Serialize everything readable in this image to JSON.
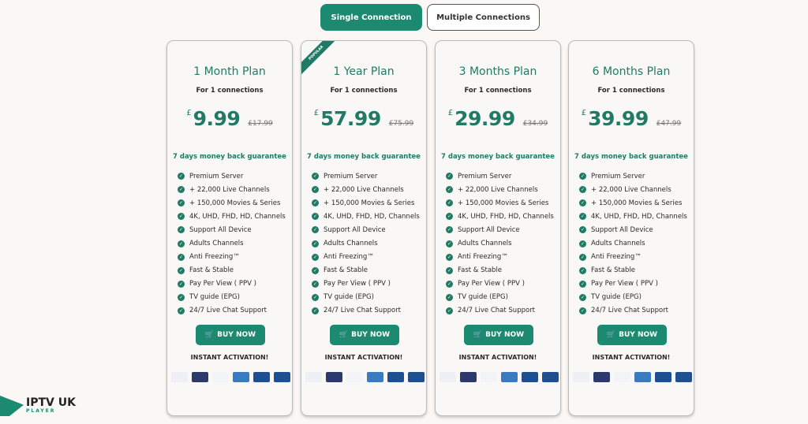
{
  "tabs": [
    {
      "label": "Single Connection",
      "active": true
    },
    {
      "label": "Multiple Connections",
      "active": false
    }
  ],
  "colors": {
    "accent": "#1b8a70",
    "text_green": "#1f7a66"
  },
  "plans": [
    {
      "title": "1 Month Plan",
      "connections": "For 1 connections",
      "currency": "£",
      "price": "9.99",
      "old_price": "£17.99",
      "badge": ""
    },
    {
      "title": "1 Year Plan",
      "connections": "For 1 connections",
      "currency": "£",
      "price": "57.99",
      "old_price": "£75.99",
      "badge": "POPULAR"
    },
    {
      "title": "3 Months Plan",
      "connections": "For 1 connections",
      "currency": "£",
      "price": "29.99",
      "old_price": "£34.99",
      "badge": ""
    },
    {
      "title": "6 Months Plan",
      "connections": "For 1 connections",
      "currency": "£",
      "price": "39.99",
      "old_price": "£47.99",
      "badge": ""
    }
  ],
  "guarantee": "7 days money back guarantee",
  "features": [
    "Premium Server",
    "+ 22,000 Live Channels",
    "+ 150,000 Movies & Series",
    "4K, UHD, FHD, HD, Channels",
    "Support All Device",
    "Adults Channels",
    "Anti Freezing™",
    "Fast & Stable",
    "Pay Per View ( PPV )",
    "TV guide (EPG)",
    "24/7 Live Chat Support"
  ],
  "buy_label": "BUY NOW",
  "instant": "INSTANT ACTIVATION!",
  "payments": [
    {
      "name": "VISA",
      "color": "#eef0f5"
    },
    {
      "name": "mastercard",
      "color": "#2b3a6b"
    },
    {
      "name": "PayPal",
      "color": "#f2f4f8"
    },
    {
      "name": "AMEX",
      "color": "#3a7bbf"
    },
    {
      "name": "VISA Electron",
      "color": "#1d4f91"
    },
    {
      "name": "Maestro",
      "color": "#1d4f91"
    }
  ],
  "logo": {
    "name": "IPTV UK",
    "sub": "PLAYER"
  }
}
